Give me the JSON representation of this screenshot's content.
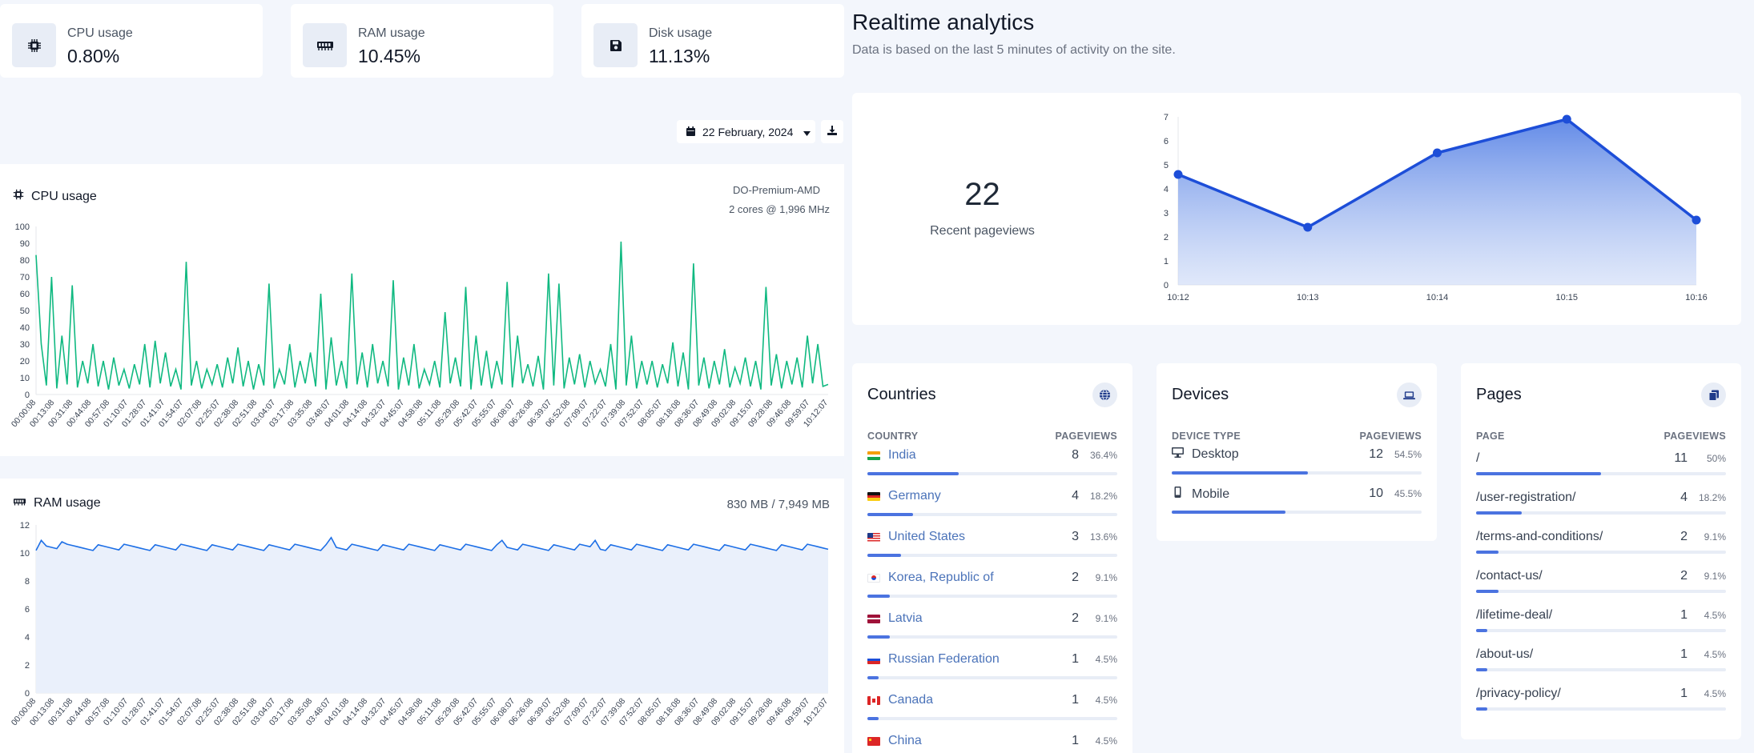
{
  "stats": [
    {
      "label": "CPU usage",
      "value": "0.80%",
      "icon": "cpu-icon"
    },
    {
      "label": "RAM usage",
      "value": "10.45%",
      "icon": "ram-icon"
    },
    {
      "label": "Disk usage",
      "value": "11.13%",
      "icon": "disk-icon"
    }
  ],
  "toolbar": {
    "date": "22 February, 2024"
  },
  "cpu_panel": {
    "title": "CPU usage",
    "server": "DO-Premium-AMD",
    "cores": "2 cores @ 1,996 MHz"
  },
  "ram_panel": {
    "title": "RAM usage",
    "memory": "830 MB / 7,949 MB"
  },
  "realtime": {
    "title": "Realtime analytics",
    "subtitle": "Data is based on the last 5 minutes of activity on the site.",
    "pageviews_value": "22",
    "pageviews_label": "Recent pageviews"
  },
  "countries": {
    "title": "Countries",
    "col1": "COUNTRY",
    "col2": "PAGEVIEWS",
    "rows": [
      {
        "name": "India",
        "count": "8",
        "pct": "36.4%",
        "frac": 0.364
      },
      {
        "name": "Germany",
        "count": "4",
        "pct": "18.2%",
        "frac": 0.182
      },
      {
        "name": "United States",
        "count": "3",
        "pct": "13.6%",
        "frac": 0.136
      },
      {
        "name": "Korea, Republic of",
        "count": "2",
        "pct": "9.1%",
        "frac": 0.091
      },
      {
        "name": "Latvia",
        "count": "2",
        "pct": "9.1%",
        "frac": 0.091
      },
      {
        "name": "Russian Federation",
        "count": "1",
        "pct": "4.5%",
        "frac": 0.045
      },
      {
        "name": "Canada",
        "count": "1",
        "pct": "4.5%",
        "frac": 0.045
      },
      {
        "name": "China",
        "count": "1",
        "pct": "4.5%",
        "frac": 0.045
      }
    ]
  },
  "devices": {
    "title": "Devices",
    "col1": "DEVICE TYPE",
    "col2": "PAGEVIEWS",
    "rows": [
      {
        "name": "Desktop",
        "count": "12",
        "pct": "54.5%",
        "frac": 0.545
      },
      {
        "name": "Mobile",
        "count": "10",
        "pct": "45.5%",
        "frac": 0.455
      }
    ]
  },
  "pages": {
    "title": "Pages",
    "col1": "PAGE",
    "col2": "PAGEVIEWS",
    "rows": [
      {
        "name": "/",
        "count": "11",
        "pct": "50%",
        "frac": 0.5
      },
      {
        "name": "/user-registration/",
        "count": "4",
        "pct": "18.2%",
        "frac": 0.182
      },
      {
        "name": "/terms-and-conditions/",
        "count": "2",
        "pct": "9.1%",
        "frac": 0.091
      },
      {
        "name": "/contact-us/",
        "count": "2",
        "pct": "9.1%",
        "frac": 0.091
      },
      {
        "name": "/lifetime-deal/",
        "count": "1",
        "pct": "4.5%",
        "frac": 0.045
      },
      {
        "name": "/about-us/",
        "count": "1",
        "pct": "4.5%",
        "frac": 0.045
      },
      {
        "name": "/privacy-policy/",
        "count": "1",
        "pct": "4.5%",
        "frac": 0.045
      }
    ]
  },
  "chart_data": [
    {
      "type": "line",
      "title": "CPU usage",
      "color": "#10b981",
      "ylim": [
        0,
        100
      ],
      "yticks": [
        "0",
        "10",
        "20",
        "30",
        "40",
        "50",
        "60",
        "70",
        "80",
        "90",
        "100"
      ],
      "xticks": [
        "00:00:08",
        "00:13:08",
        "00:31:08",
        "00:44:08",
        "00:57:08",
        "01:10:07",
        "01:28:07",
        "01:41:07",
        "01:54:07",
        "02:07:08",
        "02:25:07",
        "02:38:08",
        "02:51:08",
        "03:04:07",
        "03:17:08",
        "03:35:08",
        "03:48:07",
        "04:01:08",
        "04:14:08",
        "04:32:07",
        "04:45:07",
        "04:58:08",
        "05:11:08",
        "05:29:08",
        "05:42:07",
        "05:55:07",
        "06:08:07",
        "06:26:08",
        "06:39:07",
        "06:52:08",
        "07:09:07",
        "07:22:07",
        "07:39:08",
        "07:52:07",
        "08:05:07",
        "08:18:08",
        "08:36:07",
        "08:49:08",
        "09:02:08",
        "09:15:07",
        "09:28:08",
        "09:46:08",
        "09:59:07",
        "10:12:07"
      ],
      "spikes": [
        [
          0,
          83
        ],
        [
          1,
          30
        ],
        [
          3,
          70
        ],
        [
          5,
          35
        ],
        [
          7,
          65
        ],
        [
          9,
          20
        ],
        [
          11,
          30
        ],
        [
          13,
          20
        ],
        [
          15,
          22
        ],
        [
          17,
          15
        ],
        [
          19,
          18
        ],
        [
          21,
          30
        ],
        [
          23,
          32
        ],
        [
          25,
          25
        ],
        [
          27,
          15
        ],
        [
          29,
          79
        ],
        [
          31,
          20
        ],
        [
          33,
          15
        ],
        [
          35,
          18
        ],
        [
          37,
          22
        ],
        [
          39,
          28
        ],
        [
          41,
          20
        ],
        [
          43,
          18
        ],
        [
          45,
          66
        ],
        [
          47,
          15
        ],
        [
          49,
          30
        ],
        [
          51,
          20
        ],
        [
          53,
          25
        ],
        [
          55,
          60
        ],
        [
          57,
          34
        ],
        [
          59,
          20
        ],
        [
          61,
          72
        ],
        [
          63,
          25
        ],
        [
          65,
          30
        ],
        [
          67,
          20
        ],
        [
          69,
          68
        ],
        [
          71,
          22
        ],
        [
          73,
          30
        ],
        [
          75,
          15
        ],
        [
          77,
          20
        ],
        [
          79,
          49
        ],
        [
          81,
          22
        ],
        [
          83,
          64
        ],
        [
          85,
          35
        ],
        [
          87,
          26
        ],
        [
          89,
          20
        ],
        [
          91,
          67
        ],
        [
          93,
          35
        ],
        [
          95,
          18
        ],
        [
          97,
          23
        ],
        [
          99,
          72
        ],
        [
          101,
          66
        ],
        [
          103,
          22
        ],
        [
          105,
          24
        ],
        [
          107,
          20
        ],
        [
          109,
          15
        ],
        [
          111,
          30
        ],
        [
          113,
          91
        ],
        [
          115,
          35
        ],
        [
          117,
          20
        ],
        [
          119,
          20
        ],
        [
          121,
          18
        ],
        [
          123,
          31
        ],
        [
          125,
          25
        ],
        [
          127,
          78
        ],
        [
          129,
          22
        ],
        [
          131,
          20
        ],
        [
          133,
          27
        ],
        [
          135,
          16
        ],
        [
          137,
          22
        ],
        [
          139,
          20
        ],
        [
          141,
          64
        ],
        [
          143,
          24
        ],
        [
          145,
          20
        ],
        [
          147,
          22
        ],
        [
          149,
          35
        ],
        [
          151,
          30
        ]
      ],
      "base": 3,
      "points": 154
    },
    {
      "type": "area",
      "title": "RAM usage",
      "color": "#1d6fe6",
      "ylim": [
        0,
        12
      ],
      "yticks": [
        "0",
        "2",
        "4",
        "6",
        "8",
        "10",
        "12"
      ],
      "xticks": [
        "00:00:08",
        "00:13:08",
        "00:31:08",
        "00:44:08",
        "00:57:08",
        "01:10:07",
        "01:28:07",
        "01:41:07",
        "01:54:07",
        "02:07:08",
        "02:25:07",
        "02:38:08",
        "02:51:08",
        "03:04:07",
        "03:17:08",
        "03:35:08",
        "03:48:07",
        "04:01:08",
        "04:14:08",
        "04:32:07",
        "04:45:07",
        "04:58:08",
        "05:11:08",
        "05:29:08",
        "05:42:07",
        "05:55:07",
        "06:08:07",
        "06:26:08",
        "06:39:07",
        "06:52:08",
        "07:09:07",
        "07:22:07",
        "07:39:08",
        "07:52:07",
        "08:05:07",
        "08:18:08",
        "08:36:07",
        "08:49:08",
        "09:02:08",
        "09:15:07",
        "09:28:08",
        "09:46:08",
        "09:59:07",
        "10:12:07"
      ],
      "level": 10.4,
      "spikes": [
        [
          1,
          10.9
        ],
        [
          5,
          10.8
        ],
        [
          57,
          11.1
        ],
        [
          90,
          10.9
        ],
        [
          108,
          10.9
        ]
      ],
      "points": 154
    },
    {
      "type": "area",
      "title": "Recent pageviews",
      "color": "#1d4ed8",
      "x": [
        "10:12",
        "10:13",
        "10:14",
        "10:15",
        "10:16"
      ],
      "values": [
        4.6,
        2.4,
        5.5,
        6.9,
        2.7
      ],
      "ylim": [
        0,
        7
      ],
      "yticks": [
        "0",
        "1",
        "2",
        "3",
        "4",
        "5",
        "6",
        "7"
      ]
    }
  ]
}
